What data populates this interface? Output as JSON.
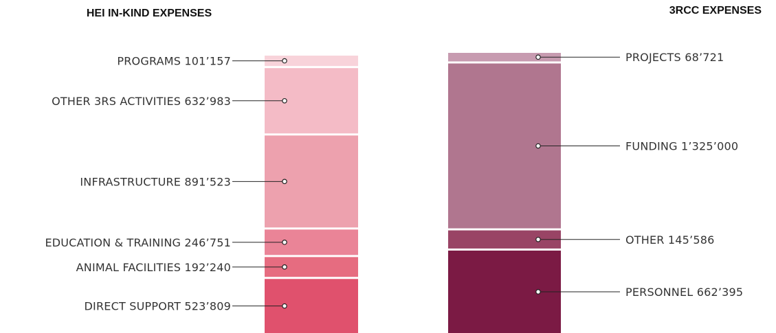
{
  "chart_data": [
    {
      "type": "stacked-bar",
      "title": "HEI IN-KIND EXPENSES",
      "label_side": "left",
      "segments": [
        {
          "label": "PROGRAMS",
          "value_text": "101’157",
          "value": 101157,
          "color": "#f8d3da"
        },
        {
          "label": "OTHER 3RS ACTIVITIES",
          "value_text": "632’983",
          "value": 632983,
          "color": "#f4bbc6"
        },
        {
          "label": "INFRASTRUCTURE",
          "value_text": "891’523",
          "value": 891523,
          "color": "#eda1ae"
        },
        {
          "label": "EDUCATION & TRAINING",
          "value_text": "246’751",
          "value": 246751,
          "color": "#ea8497"
        },
        {
          "label": "ANIMAL FACILITIES",
          "value_text": "192’240",
          "value": 192240,
          "color": "#e66c80"
        },
        {
          "label": "DIRECT SUPPORT",
          "value_text": "523’809",
          "value": 523809,
          "color": "#e0516d"
        }
      ]
    },
    {
      "type": "stacked-bar",
      "title": "3RCC EXPENSES",
      "label_side": "right",
      "segments": [
        {
          "label": "PROJECTS",
          "value_text": "68’721",
          "value": 68721,
          "color": "#c79bb0"
        },
        {
          "label": "FUNDING",
          "value_text": "1’325’000",
          "value": 1325000,
          "color": "#b0768f"
        },
        {
          "label": "OTHER",
          "value_text": "145’586",
          "value": 145586,
          "color": "#994465"
        },
        {
          "label": "PERSONNEL",
          "value_text": "662’395",
          "value": 662395,
          "color": "#7b1a44"
        }
      ]
    }
  ]
}
